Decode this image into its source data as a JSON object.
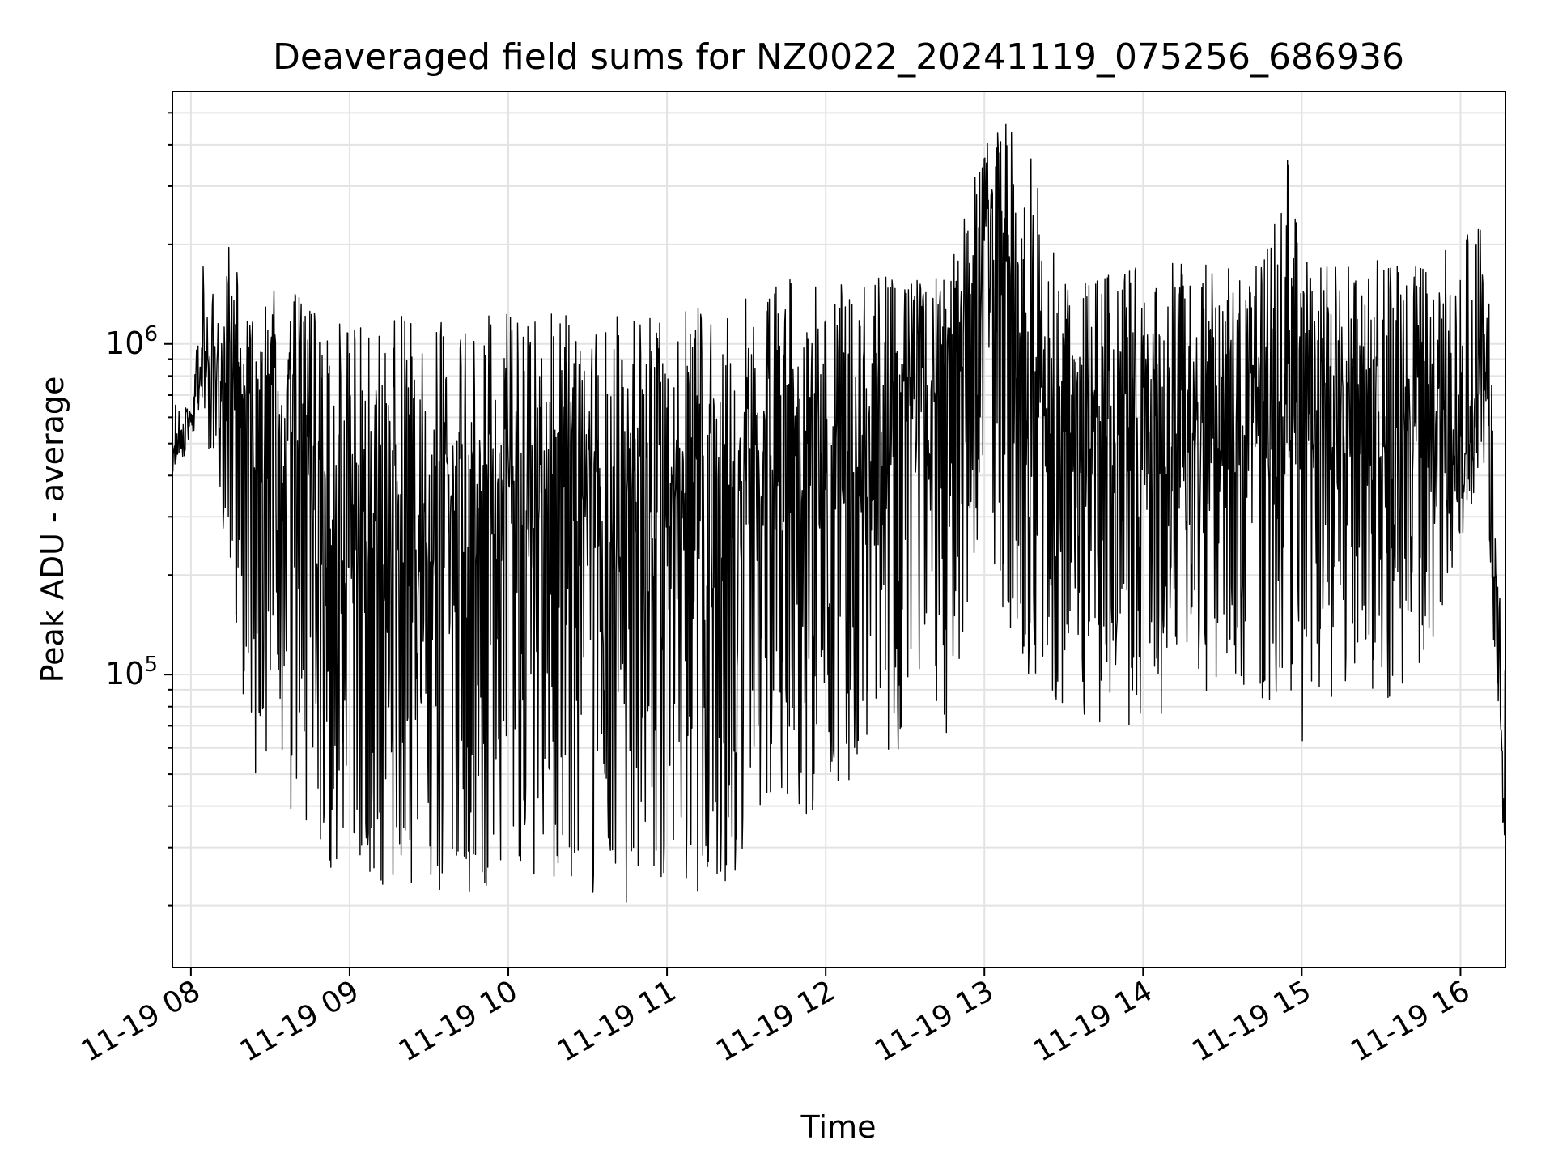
{
  "chart_data": {
    "type": "line",
    "title": "Deaveraged field sums for NZ0022_20241119_075256_686936",
    "xlabel": "Time",
    "ylabel": "Peak ADU - average",
    "yscale": "log",
    "grid": true,
    "legend": "none",
    "line_color": "#000000",
    "grid_color": "#e3e3e3",
    "xlim": [
      "2024-11-19 07:53",
      "2024-11-19 16:17"
    ],
    "ylim": [
      13000,
      5800000
    ],
    "x_ticks": [
      {
        "t": "2024-11-19 08:00",
        "label": "11-19 08"
      },
      {
        "t": "2024-11-19 09:00",
        "label": "11-19 09"
      },
      {
        "t": "2024-11-19 10:00",
        "label": "11-19 10"
      },
      {
        "t": "2024-11-19 11:00",
        "label": "11-19 11"
      },
      {
        "t": "2024-11-19 12:00",
        "label": "11-19 12"
      },
      {
        "t": "2024-11-19 13:00",
        "label": "11-19 13"
      },
      {
        "t": "2024-11-19 14:00",
        "label": "11-19 14"
      },
      {
        "t": "2024-11-19 15:00",
        "label": "11-19 15"
      },
      {
        "t": "2024-11-19 16:00",
        "label": "11-19 16"
      }
    ],
    "y_ticks": [
      {
        "value": 100000,
        "base": "10",
        "exp": "5"
      },
      {
        "value": 1000000,
        "base": "10",
        "exp": "6"
      }
    ],
    "series": [
      {
        "x": [
          "2024-11-19 07:53",
          "2024-11-19 08:00",
          "2024-11-19 08:05",
          "2024-11-19 08:10",
          "2024-11-19 08:15",
          "2024-11-19 08:20",
          "2024-11-19 08:30",
          "2024-11-19 08:40",
          "2024-11-19 08:50",
          "2024-11-19 09:00",
          "2024-11-19 09:15",
          "2024-11-19 09:30",
          "2024-11-19 09:45",
          "2024-11-19 10:00",
          "2024-11-19 10:15",
          "2024-11-19 10:30",
          "2024-11-19 10:45",
          "2024-11-19 11:00",
          "2024-11-19 11:15",
          "2024-11-19 11:30",
          "2024-11-19 11:45",
          "2024-11-19 12:00",
          "2024-11-19 12:15",
          "2024-11-19 12:30",
          "2024-11-19 12:45",
          "2024-11-19 13:00",
          "2024-11-19 13:05",
          "2024-11-19 13:15",
          "2024-11-19 13:30",
          "2024-11-19 13:45",
          "2024-11-19 14:00",
          "2024-11-19 14:15",
          "2024-11-19 14:30",
          "2024-11-19 14:45",
          "2024-11-19 14:55",
          "2024-11-19 15:00",
          "2024-11-19 15:15",
          "2024-11-19 15:30",
          "2024-11-19 15:45",
          "2024-11-19 16:00",
          "2024-11-19 16:10",
          "2024-11-19 16:14",
          "2024-11-19 16:17"
        ],
        "y": [
          450000,
          600000,
          900000,
          800000,
          1000000,
          700000,
          500000,
          400000,
          250000,
          300000,
          250000,
          250000,
          300000,
          300000,
          400000,
          350000,
          300000,
          250000,
          300000,
          350000,
          400000,
          450000,
          550000,
          600000,
          650000,
          1800000,
          2500000,
          700000,
          650000,
          600000,
          600000,
          550000,
          600000,
          650000,
          700000,
          800000,
          650000,
          600000,
          600000,
          550000,
          900000,
          120000,
          30000
        ],
        "y_min": [
          350000,
          500000,
          600000,
          300000,
          200000,
          60000,
          30000,
          27000,
          25000,
          23000,
          23000,
          22000,
          22000,
          20000,
          25000,
          22000,
          20000,
          22000,
          22000,
          25000,
          35000,
          40000,
          50000,
          55000,
          60000,
          300000,
          150000,
          90000,
          80000,
          70000,
          70000,
          80000,
          90000,
          80000,
          70000,
          60000,
          90000,
          80000,
          90000,
          250000,
          450000,
          40000,
          28000
        ],
        "y_max": [
          700000,
          650000,
          2100000,
          1200000,
          2150000,
          1300000,
          1500000,
          1450000,
          1300000,
          1250000,
          1250000,
          1200000,
          1200000,
          1250000,
          1250000,
          1250000,
          1200000,
          1250000,
          1300000,
          1450000,
          1600000,
          1500000,
          1600000,
          1600000,
          1600000,
          4000000,
          4800000,
          4500000,
          1600000,
          1700000,
          1700000,
          1800000,
          1700000,
          1800000,
          4000000,
          1800000,
          1700000,
          1900000,
          1700000,
          2200000,
          2400000,
          200000,
          140000
        ]
      }
    ]
  }
}
